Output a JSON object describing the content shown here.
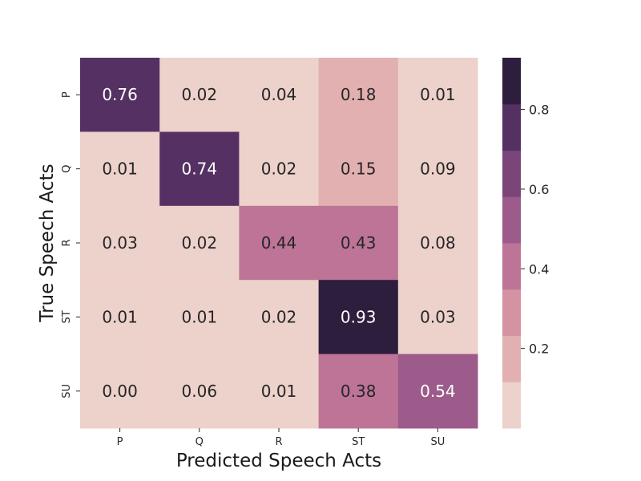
{
  "chart_data": {
    "type": "heatmap",
    "title": "",
    "xlabel": "Predicted Speech Acts",
    "ylabel": "True Speech Acts",
    "x_categories": [
      "P",
      "Q",
      "R",
      "ST",
      "SU"
    ],
    "y_categories": [
      "P",
      "Q",
      "R",
      "ST",
      "SU"
    ],
    "values": [
      [
        0.76,
        0.02,
        0.04,
        0.18,
        0.01
      ],
      [
        0.01,
        0.74,
        0.02,
        0.15,
        0.09
      ],
      [
        0.03,
        0.02,
        0.44,
        0.43,
        0.08
      ],
      [
        0.01,
        0.01,
        0.02,
        0.93,
        0.03
      ],
      [
        0.0,
        0.06,
        0.01,
        0.38,
        0.54
      ]
    ],
    "value_labels": [
      [
        "0.76",
        "0.02",
        "0.04",
        "0.18",
        "0.01"
      ],
      [
        "0.01",
        "0.74",
        "0.02",
        "0.15",
        "0.09"
      ],
      [
        "0.03",
        "0.02",
        "0.44",
        "0.43",
        "0.08"
      ],
      [
        "0.01",
        "0.01",
        "0.02",
        "0.93",
        "0.03"
      ],
      [
        "0.00",
        "0.06",
        "0.01",
        "0.38",
        "0.54"
      ]
    ],
    "colorbar": {
      "range": [
        0.0,
        0.93
      ],
      "ticks": [
        0.2,
        0.4,
        0.6,
        0.8
      ],
      "tick_labels": [
        "0.2",
        "0.4",
        "0.6",
        "0.8"
      ],
      "bins": [
        {
          "from": 0.0,
          "to": 0.1163,
          "color": "#edd1cb"
        },
        {
          "from": 0.1163,
          "to": 0.2325,
          "color": "#e2b0b0"
        },
        {
          "from": 0.2325,
          "to": 0.3488,
          "color": "#d592a2"
        },
        {
          "from": 0.3488,
          "to": 0.465,
          "color": "#bd7496"
        },
        {
          "from": 0.465,
          "to": 0.5813,
          "color": "#9c5b8a"
        },
        {
          "from": 0.5813,
          "to": 0.6975,
          "color": "#7b4579"
        },
        {
          "from": 0.6975,
          "to": 0.8138,
          "color": "#553163"
        },
        {
          "from": 0.8138,
          "to": 0.93,
          "color": "#2d1e3e"
        }
      ]
    },
    "text_colors": {
      "light": "#ffffff",
      "dark": "#262626"
    },
    "light_text_threshold": 0.465
  }
}
